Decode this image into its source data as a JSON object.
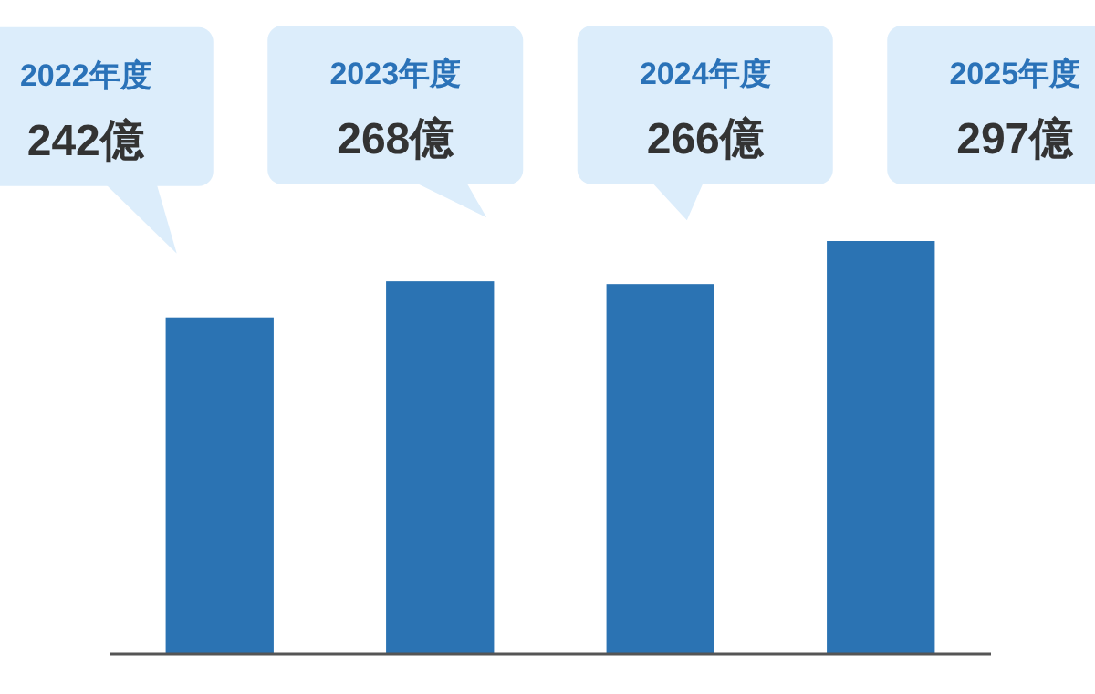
{
  "chart_data": {
    "type": "bar",
    "categories": [
      "2022年度",
      "2023年度",
      "2024年度",
      "2025年度"
    ],
    "values": [
      242,
      268,
      266,
      297
    ],
    "value_labels": [
      "242億",
      "268億",
      "266億",
      "297億"
    ],
    "color": "#2b73b3"
  }
}
